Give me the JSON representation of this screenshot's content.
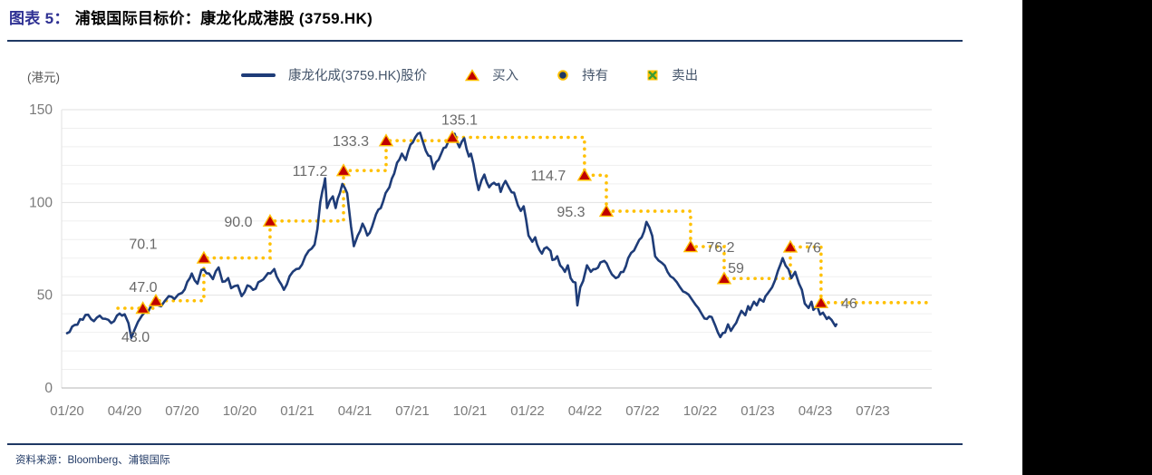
{
  "title": {
    "fig_label": "图表 5：",
    "text": "浦银国际目标价：康龙化成港股 (3759.HK)"
  },
  "unit_label": "(港元)",
  "legend": {
    "price_line": "康龙化成(3759.HK)股价",
    "buy": "买入",
    "hold": "持有",
    "sell": "卖出"
  },
  "source": "资料来源：Bloomberg、浦银国际",
  "colors": {
    "price_line": "#1E3C78",
    "target_dotted": "#FFC000",
    "buy_marker_fill": "#C00000",
    "buy_marker_edge": "#FFC000",
    "hold_marker_fill": "#1F3864",
    "sell_cross": "#3C9B35",
    "annotation_text": "#696969",
    "tick_text": "#7A7A7A",
    "grid_minor": "#EFEFEF",
    "grid_major": "#E2E2E2",
    "axis_base": "#C4C4C4",
    "rule": "#1F3864",
    "fig_label": "#2F3193"
  },
  "chart_data": {
    "type": "line",
    "title": "浦银国际目标价：康龙化成港股 (3759.HK)",
    "ylabel": "(港元)",
    "ylim": [
      0,
      150
    ],
    "yticks": [
      0,
      50,
      100,
      150
    ],
    "x_unit": "months since 2020-01",
    "x_tick_labels": [
      "01/20",
      "04/20",
      "07/20",
      "10/20",
      "01/21",
      "04/21",
      "07/21",
      "10/21",
      "01/22",
      "04/22",
      "07/22",
      "10/22",
      "01/23",
      "04/23",
      "07/23"
    ],
    "grid": {
      "horizontal_minor_step": 10,
      "vertical": false
    },
    "legend_position": "top",
    "series": [
      {
        "name": "康龙化成(3759.HK)股价",
        "role": "price",
        "points": [
          [
            0,
            29.5
          ],
          [
            0.4,
            34
          ],
          [
            1.1,
            39.5
          ],
          [
            1.4,
            36
          ],
          [
            1.7,
            39
          ],
          [
            2.0,
            37.3
          ],
          [
            2.3,
            35
          ],
          [
            2.6,
            39
          ],
          [
            3.0,
            39.7
          ],
          [
            3.2,
            35
          ],
          [
            3.35,
            27
          ],
          [
            3.5,
            31
          ],
          [
            3.7,
            35.7
          ],
          [
            3.9,
            39
          ],
          [
            4.2,
            40.6
          ],
          [
            4.4,
            44.7
          ],
          [
            4.6,
            46.4
          ],
          [
            4.9,
            44
          ],
          [
            5.1,
            47
          ],
          [
            5.3,
            49.5
          ],
          [
            5.6,
            48
          ],
          [
            5.8,
            50.4
          ],
          [
            6.0,
            51.3
          ],
          [
            6.4,
            59.2
          ],
          [
            6.5,
            61.7
          ],
          [
            6.8,
            56.2
          ],
          [
            7.0,
            63.6
          ],
          [
            7.4,
            61.7
          ],
          [
            7.6,
            58.7
          ],
          [
            7.9,
            65
          ],
          [
            8.1,
            57.2
          ],
          [
            8.4,
            59.2
          ],
          [
            8.55,
            53.8
          ],
          [
            8.9,
            55.3
          ],
          [
            9.1,
            49.5
          ],
          [
            9.4,
            55.3
          ],
          [
            9.7,
            52.9
          ],
          [
            10.1,
            57.7
          ],
          [
            10.35,
            60.2
          ],
          [
            10.6,
            61.7
          ],
          [
            10.8,
            64.1
          ],
          [
            11.05,
            57.7
          ],
          [
            11.3,
            52.9
          ],
          [
            11.6,
            60.2
          ],
          [
            11.95,
            64.1
          ],
          [
            12.25,
            66.6
          ],
          [
            12.6,
            74
          ],
          [
            12.9,
            77.3
          ],
          [
            13.05,
            85.7
          ],
          [
            13.2,
            100.3
          ],
          [
            13.3,
            105.7
          ],
          [
            13.4,
            110
          ],
          [
            13.45,
            113
          ],
          [
            13.55,
            97
          ],
          [
            13.85,
            103.3
          ],
          [
            14.0,
            97
          ],
          [
            14.1,
            101.8
          ],
          [
            14.35,
            110
          ],
          [
            14.6,
            105
          ],
          [
            14.8,
            87
          ],
          [
            14.95,
            76.4
          ],
          [
            15.15,
            82.2
          ],
          [
            15.4,
            88.6
          ],
          [
            15.65,
            82.2
          ],
          [
            15.9,
            87
          ],
          [
            16.1,
            93.5
          ],
          [
            16.35,
            97
          ],
          [
            16.6,
            105
          ],
          [
            16.8,
            108.2
          ],
          [
            17.05,
            115.5
          ],
          [
            17.2,
            121.4
          ],
          [
            17.45,
            126.3
          ],
          [
            17.65,
            122.9
          ],
          [
            17.9,
            131.2
          ],
          [
            18.15,
            135.1
          ],
          [
            18.4,
            137.6
          ],
          [
            18.55,
            132.7
          ],
          [
            18.7,
            127.8
          ],
          [
            18.95,
            124.8
          ],
          [
            19.1,
            118
          ],
          [
            19.5,
            126.3
          ],
          [
            20.0,
            134.6
          ],
          [
            20.2,
            137
          ],
          [
            20.45,
            129.7
          ],
          [
            20.7,
            134.6
          ],
          [
            20.95,
            124.8
          ],
          [
            21.05,
            126.3
          ],
          [
            21.45,
            106.7
          ],
          [
            21.75,
            115
          ],
          [
            22.0,
            108.2
          ],
          [
            22.25,
            110.6
          ],
          [
            22.5,
            110
          ],
          [
            22.6,
            105.7
          ],
          [
            22.85,
            111.6
          ],
          [
            23.05,
            107.7
          ],
          [
            23.3,
            105.2
          ],
          [
            23.5,
            98.4
          ],
          [
            23.65,
            95.4
          ],
          [
            23.8,
            97.9
          ],
          [
            24.05,
            82.2
          ],
          [
            24.25,
            78.8
          ],
          [
            24.4,
            81.2
          ],
          [
            24.5,
            77.3
          ],
          [
            24.75,
            72.4
          ],
          [
            25.0,
            75.9
          ],
          [
            25.2,
            73.9
          ],
          [
            25.3,
            69
          ],
          [
            25.55,
            71
          ],
          [
            25.7,
            66.1
          ],
          [
            25.95,
            62.6
          ],
          [
            26.1,
            66.1
          ],
          [
            26.25,
            59.2
          ],
          [
            26.5,
            56.8
          ],
          [
            26.6,
            44.5
          ],
          [
            26.75,
            54.3
          ],
          [
            26.9,
            57.7
          ],
          [
            27.1,
            66.1
          ],
          [
            27.3,
            62.6
          ],
          [
            27.55,
            64.1
          ],
          [
            27.8,
            67.6
          ],
          [
            28.0,
            68.5
          ],
          [
            28.25,
            64.1
          ],
          [
            28.4,
            61.2
          ],
          [
            28.6,
            59.2
          ],
          [
            29.0,
            62.6
          ],
          [
            29.25,
            70
          ],
          [
            29.7,
            77.3
          ],
          [
            29.95,
            81.2
          ],
          [
            30.2,
            89.5
          ],
          [
            30.5,
            82
          ],
          [
            30.65,
            71
          ],
          [
            31.0,
            67.5
          ],
          [
            31.3,
            62.6
          ],
          [
            31.6,
            59.2
          ],
          [
            31.95,
            54.3
          ],
          [
            32.25,
            51.4
          ],
          [
            32.55,
            48
          ],
          [
            32.75,
            45
          ],
          [
            32.9,
            43.1
          ],
          [
            33.1,
            39.6
          ],
          [
            33.35,
            37.2
          ],
          [
            33.6,
            38.2
          ],
          [
            33.8,
            33.3
          ],
          [
            34.05,
            27.4
          ],
          [
            34.3,
            29.9
          ],
          [
            34.45,
            34.3
          ],
          [
            34.6,
            30.8
          ],
          [
            34.75,
            33.3
          ],
          [
            35.0,
            38.2
          ],
          [
            35.15,
            41.6
          ],
          [
            35.35,
            39.2
          ],
          [
            35.5,
            44.1
          ],
          [
            35.6,
            42.1
          ],
          [
            35.8,
            46.5
          ],
          [
            35.95,
            44.5
          ],
          [
            36.1,
            48
          ],
          [
            36.3,
            46.5
          ],
          [
            36.4,
            49.4
          ],
          [
            36.55,
            51.4
          ],
          [
            36.75,
            54.3
          ],
          [
            36.9,
            58
          ],
          [
            37.05,
            63
          ],
          [
            37.2,
            67
          ],
          [
            37.3,
            70
          ],
          [
            37.45,
            66
          ],
          [
            37.6,
            64
          ],
          [
            37.75,
            59.2
          ],
          [
            37.95,
            62.6
          ],
          [
            38.15,
            56.3
          ],
          [
            38.3,
            52.9
          ],
          [
            38.45,
            45.5
          ],
          [
            38.65,
            43.1
          ],
          [
            38.8,
            46.5
          ],
          [
            38.9,
            42.1
          ],
          [
            39.1,
            44.1
          ],
          [
            39.25,
            39.6
          ],
          [
            39.4,
            40.6
          ],
          [
            39.6,
            37.2
          ],
          [
            39.7,
            38.2
          ],
          [
            39.85,
            36.7
          ],
          [
            40.05,
            33.3
          ],
          [
            40.1,
            34.3
          ]
        ]
      }
    ],
    "target_price_step": {
      "name": "浦银国际目标价",
      "style": "dotted",
      "start_month": 2.65,
      "end_month": 45.0,
      "ratings": [
        {
          "label": "43.0",
          "value": 43.0,
          "month": 3.95,
          "rating": "买入",
          "label_dx": -8,
          "label_dy": 37
        },
        {
          "label": "47.0",
          "value": 47.0,
          "month": 4.63,
          "rating": "买入",
          "label_dx": -14,
          "label_dy": -10
        },
        {
          "label": "70.1",
          "value": 70.1,
          "month": 7.13,
          "rating": "买入",
          "label_dx": -67,
          "label_dy": -10
        },
        {
          "label": "90.0",
          "value": 90.0,
          "month": 10.58,
          "rating": "买入",
          "label_dx": -35,
          "label_dy": 6
        },
        {
          "label": "117.2",
          "value": 117.2,
          "month": 14.41,
          "rating": "买入",
          "label_dx": -37,
          "label_dy": 6
        },
        {
          "label": "133.3",
          "value": 133.3,
          "month": 16.63,
          "rating": "买入",
          "label_dx": -39,
          "label_dy": 6
        },
        {
          "label": "135.1",
          "value": 135.1,
          "month": 20.08,
          "rating": "买入",
          "label_dx": 8,
          "label_dy": -14
        },
        {
          "label": "114.7",
          "value": 114.7,
          "month": 26.97,
          "rating": "买入",
          "label_dx": -40,
          "label_dy": 6
        },
        {
          "label": "95.3",
          "value": 95.3,
          "month": 28.11,
          "rating": "买入",
          "label_dx": -39,
          "label_dy": 6
        },
        {
          "label": "76.2",
          "value": 76.2,
          "month": 32.5,
          "rating": "买入",
          "label_dx": 33,
          "label_dy": 6
        },
        {
          "label": "59",
          "value": 59,
          "month": 34.25,
          "rating": "买入",
          "label_dx": 13,
          "label_dy": -6
        },
        {
          "label": "76",
          "value": 76,
          "month": 37.7,
          "rating": "买入",
          "label_dx": 25,
          "label_dy": 6
        },
        {
          "label": "46",
          "value": 46,
          "month": 39.3,
          "rating": "买入",
          "label_dx": 31,
          "label_dy": 6
        }
      ]
    }
  }
}
